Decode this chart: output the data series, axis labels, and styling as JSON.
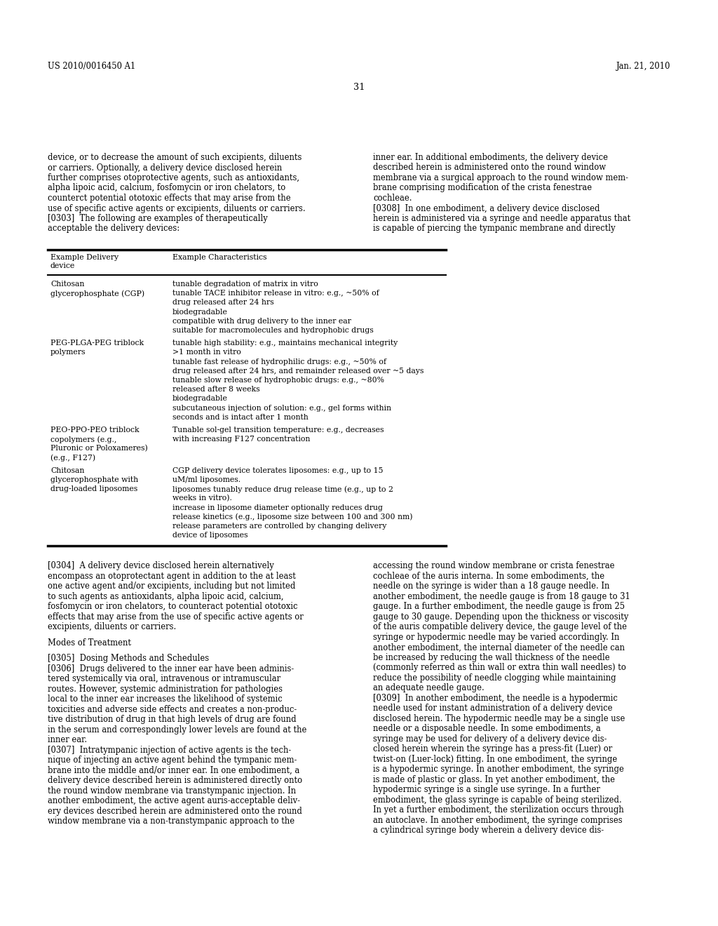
{
  "background_color": "#ffffff",
  "page_number": "31",
  "header_left": "US 2010/0016450 A1",
  "header_right": "Jan. 21, 2010",
  "body_font_size": 8.3,
  "small_font_size": 7.8,
  "top_text_left": "device, or to decrease the amount of such excipients, diluents\nor carriers. Optionally, a delivery device disclosed herein\nfurther comprises otoprotective agents, such as antioxidants,\nalpha lipoic acid, calcium, fosfomycin or iron chelators, to\ncounterct potential ototoxic effects that may arise from the\nuse of specific active agents or excipients, diluents or carriers.\n[0303]  The following are examples of therapeutically\nacceptable the delivery devices:",
  "top_text_right": "inner ear. In additional embodiments, the delivery device\ndescribed herein is administered onto the round window\nmembrane via a surgical approach to the round window mem-\nbrane comprising modification of the crista fenestrae\ncochleae.\n[0308]  In one embodiment, a delivery device disclosed\nherein is administered via a syringe and needle apparatus that\nis capable of piercing the tympanic membrane and directly",
  "table_header_col1": "Example Delivery\ndevice",
  "table_header_col2": "Example Characteristics",
  "table_rows": [
    {
      "device": "Chitosan\nglycerophosphate (CGP)",
      "characteristics": "tunable degradation of matrix in vitro\ntunable TACE inhibitor release in vitro: e.g., ~50% of\ndrug released after 24 hrs\nbiodegradable\ncompatible with drug delivery to the inner ear\nsuitable for macromolecules and hydrophobic drugs"
    },
    {
      "device": "PEG-PLGA-PEG triblock\npolymers",
      "characteristics": "tunable high stability: e.g., maintains mechanical integrity\n>1 month in vitro\ntunable fast release of hydrophilic drugs: e.g., ~50% of\ndrug released after 24 hrs, and remainder released over ~5 days\ntunable slow release of hydrophobic drugs: e.g., ~80%\nreleased after 8 weeks\nbiodegradable\nsubcutaneous injection of solution: e.g., gel forms within\nseconds and is intact after 1 month"
    },
    {
      "device": "PEO-PPO-PEO triblock\ncopolymers (e.g.,\nPluronic or Poloxameres)\n(e.g., F127)",
      "characteristics": "Tunable sol-gel transition temperature: e.g., decreases\nwith increasing F127 concentration"
    },
    {
      "device": "Chitosan\nglycerophosphate with\ndrug-loaded liposomes",
      "characteristics": "CGP delivery device tolerates liposomes: e.g., up to 15\nuM/ml liposomes.\nliposomes tunably reduce drug release time (e.g., up to 2\nweeks in vitro).\nincrease in liposome diameter optionally reduces drug\nrelease kinetics (e.g., liposome size between 100 and 300 nm)\nrelease parameters are controlled by changing delivery\ndevice of liposomes"
    }
  ],
  "bottom_text_left": "[0304]  A delivery device disclosed herein alternatively\nencompass an otoprotectant agent in addition to the at least\none active agent and/or excipients, including but not limited\nto such agents as antioxidants, alpha lipoic acid, calcium,\nfosfomycin or iron chelators, to counteract potential ototoxic\neffects that may arise from the use of specific active agents or\nexcipients, diluents or carriers.\n\nModes of Treatment\n\n[0305]  Dosing Methods and Schedules\n[0306]  Drugs delivered to the inner ear have been adminis-\ntered systemically via oral, intravenous or intramuscular\nroutes. However, systemic administration for pathologies\nlocal to the inner ear increases the likelihood of systemic\ntoxicities and adverse side effects and creates a non-produc-\ntive distribution of drug in that high levels of drug are found\nin the serum and correspondingly lower levels are found at the\ninner ear.\n[0307]  Intratympanic injection of active agents is the tech-\nnique of injecting an active agent behind the tympanic mem-\nbrane into the middle and/or inner ear. In one embodiment, a\ndelivery device described herein is administered directly onto\nthe round window membrane via transtympanic injection. In\nanother embodiment, the active agent auris-acceptable deliv-\nery devices described herein are administered onto the round\nwindow membrane via a non-transtympanic approach to the",
  "bottom_text_right": "accessing the round window membrane or crista fenestrae\ncochleae of the auris interna. In some embodiments, the\nneedle on the syringe is wider than a 18 gauge needle. In\nanother embodiment, the needle gauge is from 18 gauge to 31\ngauge. In a further embodiment, the needle gauge is from 25\ngauge to 30 gauge. Depending upon the thickness or viscosity\nof the auris compatible delivery device, the gauge level of the\nsyringe or hypodermic needle may be varied accordingly. In\nanother embodiment, the internal diameter of the needle can\nbe increased by reducing the wall thickness of the needle\n(commonly referred as thin wall or extra thin wall needles) to\nreduce the possibility of needle clogging while maintaining\nan adequate needle gauge.\n[0309]  In another embodiment, the needle is a hypodermic\nneedle used for instant administration of a delivery device\ndisclosed herein. The hypodermic needle may be a single use\nneedle or a disposable needle. In some embodiments, a\nsyringe may be used for delivery of a delivery device dis-\nclosed herein wherein the syringe has a press-fit (Luer) or\ntwist-on (Luer-lock) fitting. In one embodiment, the syringe\nis a hypodermic syringe. In another embodiment, the syringe\nis made of plastic or glass. In yet another embodiment, the\nhypodermic syringe is a single use syringe. In a further\nembodiment, the glass syringe is capable of being sterilized.\nIn yet a further embodiment, the sterilization occurs through\nan autoclave. In another embodiment, the syringe comprises\na cylindrical syringe body wherein a delivery device dis-"
}
